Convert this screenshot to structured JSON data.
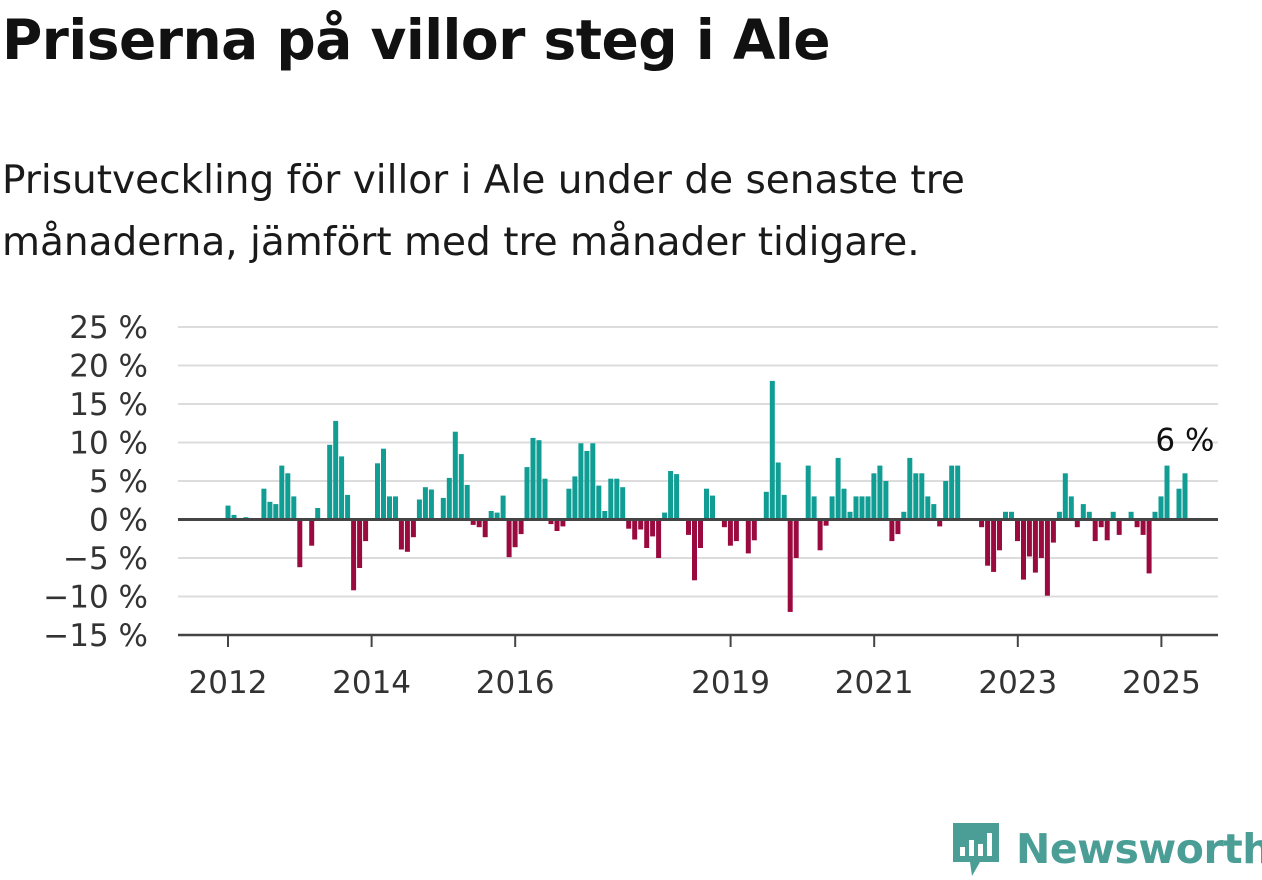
{
  "title": "Priserna på villor steg i Ale",
  "subtitle": "Prisutveckling för villor i Ale under de senaste tre månaderna, jämfört med tre månader tidigare.",
  "brand": {
    "name": "Newsworthy"
  },
  "colors": {
    "positive": "#0f9d94",
    "negative": "#9b0a3f",
    "gridline": "#dcdcdc",
    "zero_line": "#444444",
    "brand": "#4a9e95"
  },
  "chart_data": {
    "type": "bar",
    "title": "Priserna på villor steg i Ale",
    "ylim": [
      -15,
      25
    ],
    "yticks": [
      -15,
      -10,
      -5,
      0,
      5,
      10,
      15,
      20,
      25
    ],
    "ytick_labels": [
      "−15 %",
      "−10 %",
      "−5 %",
      "0 %",
      "5 %",
      "10 %",
      "15 %",
      "20 %",
      "25 %"
    ],
    "xticks": [
      2012,
      2014,
      2016,
      2019,
      2021,
      2023,
      2025
    ],
    "xtick_labels": [
      "2012",
      "2014",
      "2016",
      "2019",
      "2021",
      "2023",
      "2025"
    ],
    "x_start": 2012.0,
    "x_step_years": 0.0833,
    "grid": true,
    "annotation": {
      "label": "6 %",
      "value": 6
    },
    "values": [
      1.8,
      0.6,
      0,
      0.3,
      0.2,
      0,
      4,
      2.3,
      2,
      7,
      6,
      3,
      -6.2,
      0,
      -3.4,
      1.5,
      0,
      9.7,
      12.8,
      8.2,
      3.2,
      -9.2,
      -6.3,
      -2.8,
      0,
      7.3,
      9.2,
      3,
      3,
      -3.9,
      -4.2,
      -2.3,
      2.6,
      4.2,
      3.9,
      0,
      2.8,
      5.4,
      11.4,
      8.5,
      4.5,
      -0.7,
      -1,
      -2.3,
      1.1,
      0.9,
      3.1,
      -4.9,
      -3.6,
      -1.9,
      6.8,
      10.6,
      10.3,
      5.3,
      -0.6,
      -1.5,
      -0.9,
      4,
      5.6,
      9.9,
      8.9,
      9.9,
      4.4,
      1.1,
      5.3,
      5.3,
      4.2,
      -1.2,
      -2.6,
      -1.3,
      -3.7,
      -2.2,
      -5,
      0.9,
      6.3,
      5.9,
      0,
      -2,
      -7.9,
      -3.7,
      4,
      3.1,
      0,
      -1,
      -3.4,
      -2.8,
      0,
      -4.4,
      -2.7,
      0,
      3.6,
      18,
      7.4,
      3.2,
      -12,
      -5,
      0,
      7,
      3,
      -4,
      -0.8,
      3,
      8,
      4,
      1,
      3,
      3,
      3,
      6,
      7,
      5,
      -2.8,
      -1.9,
      1,
      8,
      6,
      6,
      3,
      2,
      -0.9,
      5,
      7,
      7,
      0,
      0,
      0,
      -1,
      -6,
      -6.8,
      -4,
      1,
      1,
      -2.8,
      -7.8,
      -4.8,
      -6.9,
      -5,
      -9.9,
      -3,
      1,
      6,
      3,
      -1,
      2,
      1,
      -2.8,
      -1,
      -2.7,
      1,
      -2,
      0,
      1,
      -1,
      -2,
      -7,
      1,
      3,
      7,
      0,
      4,
      6
    ]
  }
}
